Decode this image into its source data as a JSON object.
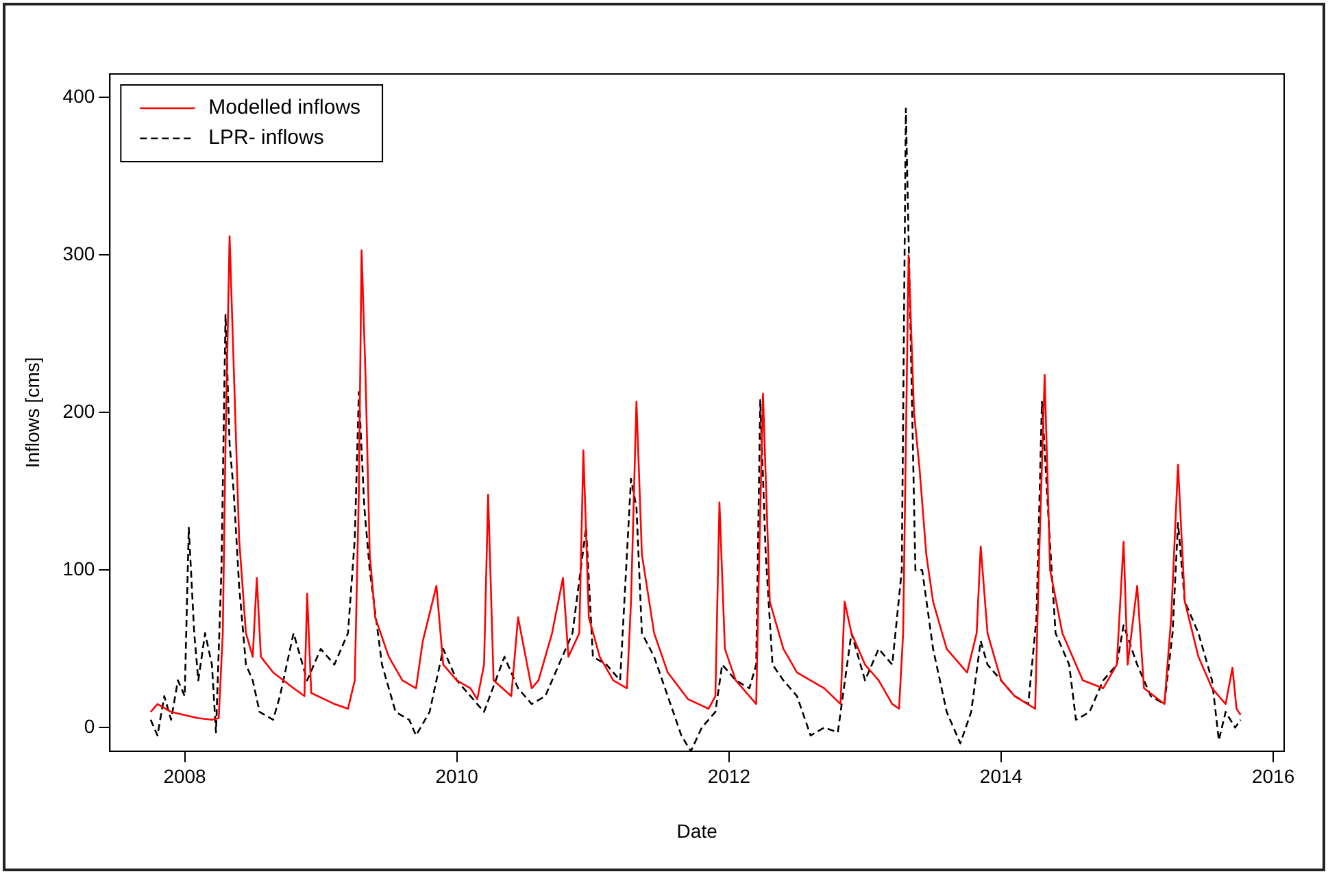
{
  "chart_data": {
    "type": "line",
    "xlabel": "Date",
    "ylabel": "Inflows [cms]",
    "xlim": [
      2007.45,
      2016.08
    ],
    "xticks": [
      2008,
      2010,
      2012,
      2014,
      2016
    ],
    "ylim": [
      -15,
      415
    ],
    "yticks": [
      0,
      100,
      200,
      300,
      400
    ],
    "grid": false,
    "legend": "top left",
    "marker": "none",
    "series": [
      {
        "name": "Modelled inflows",
        "color": "#ff0000",
        "line_style": "solid",
        "x": [
          2007.75,
          2007.8,
          2007.9,
          2008.0,
          2008.1,
          2008.2,
          2008.25,
          2008.28,
          2008.3,
          2008.33,
          2008.36,
          2008.4,
          2008.45,
          2008.5,
          2008.53,
          2008.56,
          2008.65,
          2008.8,
          2008.88,
          2008.9,
          2008.93,
          2009.1,
          2009.2,
          2009.25,
          2009.28,
          2009.3,
          2009.33,
          2009.36,
          2009.4,
          2009.5,
          2009.6,
          2009.7,
          2009.75,
          2009.85,
          2009.9,
          2010.0,
          2010.1,
          2010.15,
          2010.2,
          2010.23,
          2010.27,
          2010.4,
          2010.45,
          2010.55,
          2010.6,
          2010.7,
          2010.78,
          2010.82,
          2010.9,
          2010.93,
          2010.97,
          2011.05,
          2011.15,
          2011.25,
          2011.28,
          2011.32,
          2011.36,
          2011.45,
          2011.55,
          2011.7,
          2011.85,
          2011.9,
          2011.93,
          2011.97,
          2012.05,
          2012.15,
          2012.2,
          2012.22,
          2012.25,
          2012.3,
          2012.4,
          2012.5,
          2012.7,
          2012.82,
          2012.85,
          2012.9,
          2013.0,
          2013.1,
          2013.2,
          2013.25,
          2013.28,
          2013.32,
          2013.36,
          2013.4,
          2013.45,
          2013.5,
          2013.6,
          2013.75,
          2013.82,
          2013.85,
          2013.9,
          2014.0,
          2014.1,
          2014.25,
          2014.28,
          2014.32,
          2014.36,
          2014.45,
          2014.6,
          2014.75,
          2014.85,
          2014.9,
          2014.93,
          2015.0,
          2015.05,
          2015.2,
          2015.25,
          2015.3,
          2015.35,
          2015.45,
          2015.55,
          2015.65,
          2015.7,
          2015.73,
          2015.76
        ],
        "values": [
          10,
          15,
          10,
          8,
          6,
          5,
          6,
          60,
          180,
          312,
          230,
          120,
          60,
          45,
          95,
          45,
          35,
          25,
          20,
          85,
          22,
          15,
          12,
          30,
          150,
          303,
          220,
          110,
          70,
          45,
          30,
          25,
          55,
          90,
          40,
          30,
          25,
          18,
          40,
          148,
          30,
          20,
          70,
          25,
          30,
          60,
          95,
          45,
          60,
          176,
          70,
          45,
          30,
          25,
          80,
          207,
          110,
          60,
          35,
          18,
          12,
          20,
          143,
          50,
          30,
          20,
          15,
          100,
          212,
          80,
          50,
          35,
          25,
          15,
          80,
          60,
          40,
          30,
          15,
          12,
          60,
          300,
          200,
          165,
          110,
          80,
          50,
          35,
          60,
          115,
          60,
          30,
          20,
          12,
          110,
          224,
          100,
          60,
          30,
          25,
          40,
          118,
          40,
          90,
          25,
          15,
          70,
          167,
          80,
          45,
          25,
          15,
          38,
          12,
          8
        ]
      },
      {
        "name": "LPR- inflows",
        "color": "#000000",
        "line_style": "dashed",
        "x": [
          2007.75,
          2007.8,
          2007.85,
          2007.9,
          2007.95,
          2008.0,
          2008.03,
          2008.07,
          2008.1,
          2008.15,
          2008.2,
          2008.23,
          2008.27,
          2008.3,
          2008.33,
          2008.36,
          2008.4,
          2008.45,
          2008.5,
          2008.55,
          2008.65,
          2008.7,
          2008.8,
          2008.9,
          2009.0,
          2009.1,
          2009.2,
          2009.25,
          2009.28,
          2009.32,
          2009.36,
          2009.45,
          2009.55,
          2009.65,
          2009.7,
          2009.8,
          2009.9,
          2010.0,
          2010.1,
          2010.2,
          2010.35,
          2010.45,
          2010.55,
          2010.65,
          2010.75,
          2010.85,
          2010.95,
          2011.0,
          2011.1,
          2011.2,
          2011.28,
          2011.32,
          2011.36,
          2011.45,
          2011.55,
          2011.65,
          2011.72,
          2011.8,
          2011.9,
          2011.95,
          2012.05,
          2012.15,
          2012.2,
          2012.23,
          2012.27,
          2012.32,
          2012.4,
          2012.5,
          2012.6,
          2012.7,
          2012.8,
          2012.9,
          2013.0,
          2013.1,
          2013.2,
          2013.27,
          2013.3,
          2013.33,
          2013.37,
          2013.42,
          2013.5,
          2013.6,
          2013.7,
          2013.78,
          2013.85,
          2013.9,
          2014.0,
          2014.1,
          2014.2,
          2014.26,
          2014.3,
          2014.35,
          2014.4,
          2014.5,
          2014.55,
          2014.65,
          2014.75,
          2014.85,
          2014.9,
          2015.0,
          2015.1,
          2015.2,
          2015.26,
          2015.3,
          2015.35,
          2015.45,
          2015.55,
          2015.6,
          2015.65,
          2015.72,
          2015.76
        ],
        "values": [
          5,
          -5,
          20,
          5,
          30,
          20,
          127,
          60,
          30,
          60,
          40,
          -3,
          100,
          262,
          180,
          150,
          90,
          40,
          30,
          10,
          5,
          20,
          60,
          30,
          50,
          40,
          60,
          120,
          213,
          140,
          100,
          40,
          10,
          5,
          -5,
          10,
          50,
          30,
          20,
          10,
          45,
          25,
          15,
          20,
          40,
          60,
          127,
          45,
          40,
          30,
          158,
          140,
          60,
          45,
          20,
          -5,
          -15,
          0,
          10,
          40,
          30,
          25,
          40,
          208,
          110,
          40,
          30,
          20,
          -5,
          0,
          -3,
          60,
          30,
          50,
          40,
          100,
          393,
          270,
          100,
          100,
          50,
          10,
          -10,
          10,
          55,
          40,
          30,
          20,
          15,
          70,
          207,
          130,
          60,
          40,
          5,
          10,
          30,
          40,
          65,
          40,
          20,
          15,
          60,
          130,
          80,
          60,
          30,
          -8,
          10,
          0,
          5
        ]
      }
    ]
  }
}
